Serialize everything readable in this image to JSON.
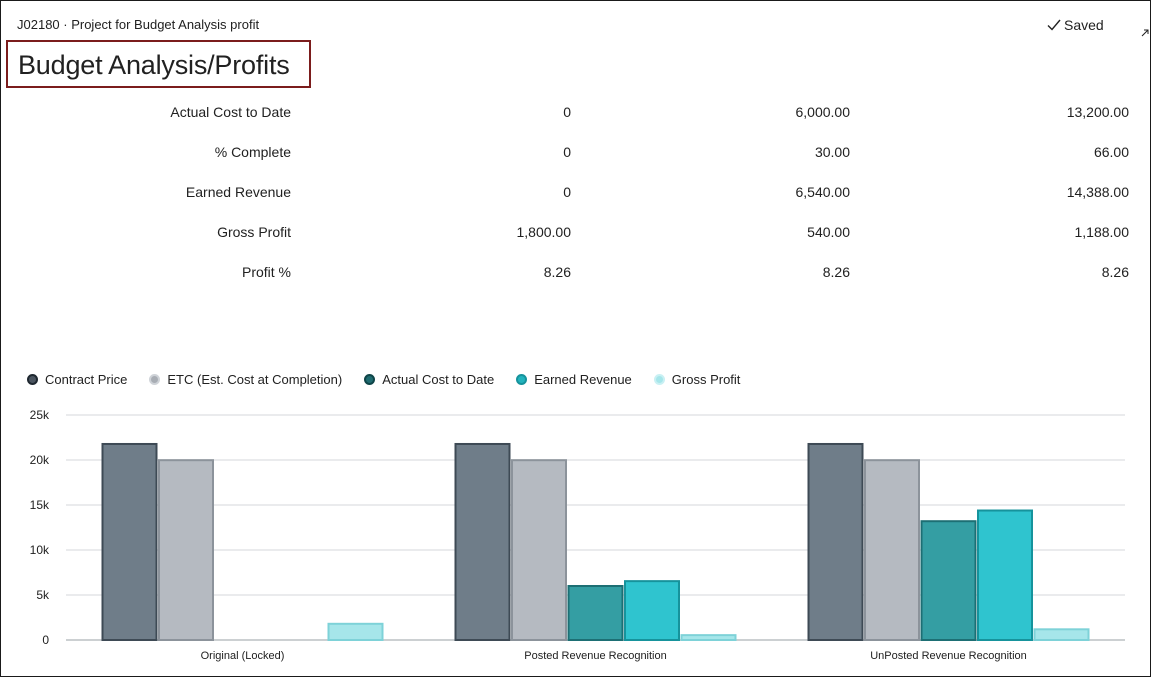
{
  "header": {
    "breadcrumb": "J02180 · Project for Budget Analysis profit",
    "saved_label": "Saved",
    "title": "Budget Analysis/Profits"
  },
  "stats": {
    "rows": [
      {
        "label": "Actual Cost to Date",
        "values": [
          "0",
          "6,000.00",
          "13,200.00"
        ]
      },
      {
        "label": "% Complete",
        "values": [
          "0",
          "30.00",
          "66.00"
        ]
      },
      {
        "label": "Earned Revenue",
        "values": [
          "0",
          "6,540.00",
          "14,388.00"
        ]
      },
      {
        "label": "Gross Profit",
        "values": [
          "1,800.00",
          "540.00",
          "1,188.00"
        ]
      },
      {
        "label": "Profit %",
        "values": [
          "8.26",
          "8.26",
          "8.26"
        ]
      }
    ]
  },
  "chart_data": {
    "type": "bar",
    "categories": [
      "Original (Locked)",
      "Posted Revenue Recognition",
      "UnPosted Revenue Recognition"
    ],
    "series": [
      {
        "name": "Contract Price",
        "color": "#6f7d89",
        "border": "#3e4a55",
        "dot": "#4b5560",
        "values": [
          21780,
          21780,
          21780
        ]
      },
      {
        "name": "ETC (Est. Cost at Completion)",
        "color": "#b5bac1",
        "border": "#8c939b",
        "dot": "#a8adb4",
        "values": [
          19980,
          19980,
          19980
        ]
      },
      {
        "name": "Actual Cost to Date",
        "color": "#349ea3",
        "border": "#1d6f74",
        "dot": "#1f6b70",
        "values": [
          0,
          6000,
          13200
        ]
      },
      {
        "name": "Earned Revenue",
        "color": "#2fc4cf",
        "border": "#16939c",
        "dot": "#22b3bd",
        "values": [
          0,
          6540,
          14388
        ]
      },
      {
        "name": "Gross Profit",
        "color": "#a6e6ea",
        "border": "#7ed2d8",
        "dot": "#a6e6ea",
        "values": [
          1800,
          540,
          1188
        ]
      }
    ],
    "y_ticks": [
      "0",
      "5k",
      "10k",
      "15k",
      "20k",
      "25k"
    ],
    "ylim": [
      0,
      25000
    ],
    "grid": true,
    "legend_position": "top-left"
  }
}
